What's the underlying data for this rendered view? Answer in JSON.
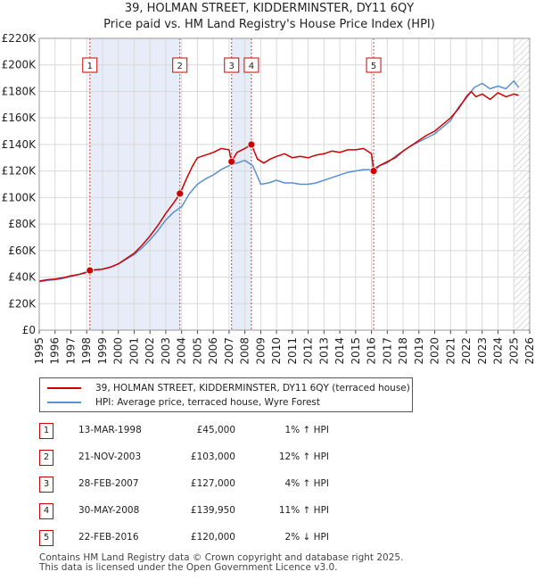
{
  "chart_data": {
    "type": "line",
    "title": "39, HOLMAN STREET, KIDDERMINSTER, DY11 6QY",
    "subtitle": "Price paid vs. HM Land Registry's House Price Index (HPI)",
    "xlim": [
      1995,
      2026
    ],
    "ylim": [
      0,
      220000
    ],
    "x_ticks": [
      "1995",
      "1996",
      "1997",
      "1998",
      "1999",
      "2000",
      "2001",
      "2002",
      "2003",
      "2004",
      "2005",
      "2006",
      "2007",
      "2008",
      "2009",
      "2010",
      "2011",
      "2012",
      "2013",
      "2014",
      "2015",
      "2016",
      "2017",
      "2018",
      "2019",
      "2020",
      "2021",
      "2022",
      "2023",
      "2024",
      "2025",
      "2026"
    ],
    "y_ticks": [
      {
        "value": 0,
        "label": "£0"
      },
      {
        "value": 20000,
        "label": "£20K"
      },
      {
        "value": 40000,
        "label": "£40K"
      },
      {
        "value": 60000,
        "label": "£60K"
      },
      {
        "value": 80000,
        "label": "£80K"
      },
      {
        "value": 100000,
        "label": "£100K"
      },
      {
        "value": 120000,
        "label": "£120K"
      },
      {
        "value": 140000,
        "label": "£140K"
      },
      {
        "value": 160000,
        "label": "£160K"
      },
      {
        "value": 180000,
        "label": "£180K"
      },
      {
        "value": 200000,
        "label": "£200K"
      },
      {
        "value": 220000,
        "label": "£220K"
      }
    ],
    "grid": true,
    "shaded_periods": [
      [
        1998.2,
        2003.9
      ],
      [
        2007.16,
        2008.41
      ]
    ],
    "future_hatch_from": 2025.0,
    "series": [
      {
        "name": "39, HOLMAN STREET, KIDDERMINSTER, DY11 6QY (terraced house)",
        "color": "#cc0000",
        "x": [
          1995.0,
          1995.5,
          1996.0,
          1996.5,
          1997.0,
          1997.5,
          1998.0,
          1998.2,
          1998.6,
          1999.0,
          1999.5,
          2000.0,
          2000.5,
          2001.0,
          2001.5,
          2002.0,
          2002.5,
          2003.0,
          2003.5,
          2003.9,
          2004.3,
          2004.7,
          2005.0,
          2005.5,
          2006.0,
          2006.5,
          2007.0,
          2007.16,
          2007.5,
          2008.0,
          2008.41,
          2008.8,
          2009.2,
          2009.6,
          2010.0,
          2010.5,
          2011.0,
          2011.5,
          2012.0,
          2012.5,
          2013.0,
          2013.5,
          2014.0,
          2014.5,
          2015.0,
          2015.5,
          2016.0,
          2016.14,
          2016.5,
          2017.0,
          2017.5,
          2018.0,
          2018.5,
          2019.0,
          2019.5,
          2020.0,
          2020.5,
          2021.0,
          2021.5,
          2022.0,
          2022.3,
          2022.6,
          2023.0,
          2023.5,
          2024.0,
          2024.5,
          2025.0,
          2025.3
        ],
        "y": [
          37000,
          38000,
          38500,
          39500,
          41000,
          42000,
          43500,
          45000,
          45500,
          46000,
          47500,
          50000,
          54000,
          58000,
          64000,
          71000,
          79000,
          88000,
          96000,
          103000,
          114000,
          124000,
          130000,
          132000,
          134000,
          137000,
          136000,
          127000,
          134000,
          137000,
          139950,
          129000,
          126000,
          129000,
          131000,
          133000,
          130000,
          131000,
          130000,
          132000,
          133000,
          135000,
          134000,
          136000,
          136000,
          137000,
          133000,
          120000,
          124000,
          127000,
          130000,
          135000,
          139000,
          143000,
          147000,
          150000,
          155000,
          160000,
          167000,
          176000,
          180000,
          176000,
          178000,
          174000,
          179000,
          176000,
          178000,
          177000
        ]
      },
      {
        "name": "HPI: Average price, terraced house, Wyre Forest",
        "color": "#5a8fd0",
        "x": [
          1995.0,
          1995.5,
          1996.0,
          1996.5,
          1997.0,
          1997.5,
          1998.0,
          1998.5,
          1999.0,
          1999.5,
          2000.0,
          2000.5,
          2001.0,
          2001.5,
          2002.0,
          2002.5,
          2003.0,
          2003.5,
          2004.0,
          2004.5,
          2005.0,
          2005.5,
          2006.0,
          2006.5,
          2007.0,
          2007.5,
          2008.0,
          2008.5,
          2009.0,
          2009.5,
          2010.0,
          2010.5,
          2011.0,
          2011.5,
          2012.0,
          2012.5,
          2013.0,
          2013.5,
          2014.0,
          2014.5,
          2015.0,
          2015.5,
          2016.0,
          2016.5,
          2017.0,
          2017.5,
          2018.0,
          2018.5,
          2019.0,
          2019.5,
          2020.0,
          2020.5,
          2021.0,
          2021.5,
          2022.0,
          2022.5,
          2023.0,
          2023.5,
          2024.0,
          2024.5,
          2025.0,
          2025.3
        ],
        "y": [
          36500,
          37500,
          38000,
          39000,
          40500,
          42000,
          44000,
          45500,
          46000,
          47500,
          50000,
          53500,
          57000,
          62000,
          68000,
          75000,
          83000,
          89000,
          93000,
          103000,
          110000,
          114000,
          117000,
          121000,
          124000,
          126000,
          128000,
          124000,
          110000,
          111000,
          113000,
          111000,
          111000,
          110000,
          110000,
          111000,
          113000,
          115000,
          117000,
          119000,
          120000,
          121000,
          121000,
          124000,
          126000,
          131000,
          135000,
          139000,
          142000,
          145000,
          148000,
          153000,
          158000,
          168000,
          175000,
          183000,
          186000,
          182000,
          184000,
          182000,
          188000,
          183000
        ]
      }
    ],
    "sales": [
      {
        "num": "1",
        "date": "13-MAR-1998",
        "price": "£45,000",
        "hpi": "1% ↑ HPI",
        "x": 1998.2,
        "y": 45000
      },
      {
        "num": "2",
        "date": "21-NOV-2003",
        "price": "£103,000",
        "hpi": "12% ↑ HPI",
        "x": 2003.89,
        "y": 103000
      },
      {
        "num": "3",
        "date": "28-FEB-2007",
        "price": "£127,000",
        "hpi": "4% ↑ HPI",
        "x": 2007.16,
        "y": 127000
      },
      {
        "num": "4",
        "date": "30-MAY-2008",
        "price": "£139,950",
        "hpi": "11% ↑ HPI",
        "x": 2008.41,
        "y": 139950
      },
      {
        "num": "5",
        "date": "22-FEB-2016",
        "price": "£120,000",
        "hpi": "2% ↓ HPI",
        "x": 2016.14,
        "y": 120000
      }
    ]
  },
  "footer": {
    "line1": "Contains HM Land Registry data © Crown copyright and database right 2025.",
    "line2": "This data is licensed under the Open Government Licence v3.0."
  }
}
